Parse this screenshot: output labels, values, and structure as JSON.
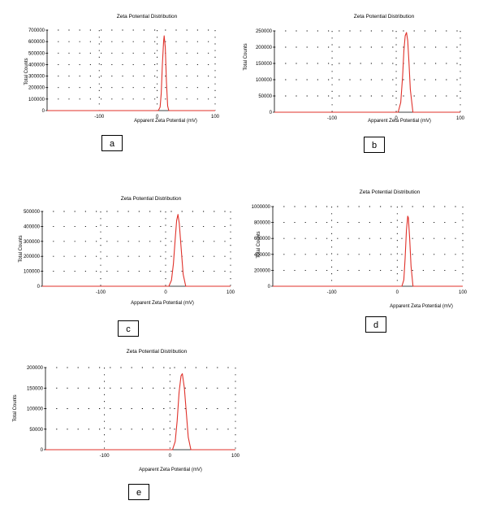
{
  "chart_data": [
    {
      "id": "a",
      "type": "line",
      "title": "Zeta Potential Distribution",
      "xlabel": "Apparent Zeta Potential (mV)",
      "ylabel": "Total Counts",
      "xlim": [
        -190,
        100
      ],
      "ylim": [
        0,
        700000
      ],
      "xticks": [
        -100,
        0,
        100
      ],
      "xtick_labels": [
        "-100",
        "0",
        "100"
      ],
      "yticks": [
        0,
        100000,
        200000,
        300000,
        400000,
        500000,
        600000,
        700000
      ],
      "ytick_labels": [
        "0",
        "100000",
        "200000",
        "300000",
        "400000",
        "500000",
        "600000",
        "700000"
      ],
      "grid": true,
      "series": [
        {
          "color": "#e0312a",
          "x": [
            -190,
            2,
            5,
            7,
            9,
            11,
            12,
            14,
            16,
            18,
            20,
            100
          ],
          "y": [
            0,
            0,
            30000,
            150000,
            400000,
            600000,
            650000,
            550000,
            250000,
            40000,
            0,
            0
          ]
        }
      ],
      "panel_label": "a"
    },
    {
      "id": "b",
      "type": "line",
      "title": "Zeta Potential Distribution",
      "xlabel": "Apparent Zeta Potential (mV)",
      "ylabel": "Total Counts",
      "xlim": [
        -190,
        100
      ],
      "ylim": [
        0,
        250000
      ],
      "xticks": [
        -100,
        0,
        100
      ],
      "xtick_labels": [
        "-100",
        "0",
        "100"
      ],
      "yticks": [
        0,
        50000,
        100000,
        150000,
        200000,
        250000
      ],
      "ytick_labels": [
        "0",
        "50000",
        "100000",
        "150000",
        "200000",
        "250000"
      ],
      "grid": true,
      "series": [
        {
          "color": "#e0312a",
          "x": [
            -190,
            3,
            7,
            10,
            12,
            14,
            16,
            18,
            20,
            22,
            26,
            100
          ],
          "y": [
            0,
            0,
            30000,
            110000,
            190000,
            235000,
            245000,
            220000,
            150000,
            70000,
            0,
            0
          ]
        }
      ],
      "panel_label": "b"
    },
    {
      "id": "c",
      "type": "line",
      "title": "Zeta Potential Distribution",
      "xlabel": "Apparent Zeta Potential (mV)",
      "ylabel": "Total Counts",
      "xlim": [
        -190,
        100
      ],
      "ylim": [
        0,
        500000
      ],
      "xticks": [
        -100,
        0,
        100
      ],
      "xtick_labels": [
        "-100",
        "0",
        "100"
      ],
      "yticks": [
        0,
        100000,
        200000,
        300000,
        400000,
        500000
      ],
      "ytick_labels": [
        "0",
        "100000",
        "200000",
        "300000",
        "400000",
        "500000"
      ],
      "grid": true,
      "series": [
        {
          "color": "#e0312a",
          "x": [
            -190,
            5,
            9,
            12,
            15,
            17,
            19,
            21,
            24,
            27,
            31,
            100
          ],
          "y": [
            0,
            0,
            40000,
            150000,
            330000,
            440000,
            480000,
            420000,
            250000,
            80000,
            0,
            0
          ]
        }
      ],
      "panel_label": "c"
    },
    {
      "id": "d",
      "type": "line",
      "title": "Zeta Potential Distribution",
      "xlabel": "Apparent Zeta Potential (mV)",
      "ylabel": "Total Counts",
      "xlim": [
        -190,
        100
      ],
      "ylim": [
        0,
        1000000
      ],
      "xticks": [
        -100,
        0,
        100
      ],
      "xtick_labels": [
        "-100",
        "0",
        "100"
      ],
      "yticks": [
        0,
        200000,
        400000,
        600000,
        800000,
        1000000
      ],
      "ytick_labels": [
        "0",
        "200000",
        "400000",
        "600000",
        "800000",
        "1000000"
      ],
      "grid": true,
      "series": [
        {
          "color": "#e0312a",
          "x": [
            -190,
            7,
            10,
            12,
            14,
            16,
            17,
            19,
            21,
            24,
            100
          ],
          "y": [
            0,
            0,
            80000,
            350000,
            700000,
            880000,
            860000,
            600000,
            250000,
            0,
            0
          ]
        }
      ],
      "panel_label": "d"
    },
    {
      "id": "e",
      "type": "line",
      "title": "Zeta Potential Distribution",
      "xlabel": "Apparent Zeta Potential (mV)",
      "ylabel": "Total Counts",
      "xlim": [
        -190,
        100
      ],
      "ylim": [
        0,
        200000
      ],
      "xticks": [
        -100,
        0,
        100
      ],
      "xtick_labels": [
        "-100",
        "0",
        "100"
      ],
      "yticks": [
        0,
        50000,
        100000,
        150000,
        200000
      ],
      "ytick_labels": [
        "0",
        "50000",
        "100000",
        "150000",
        "200000"
      ],
      "grid": true,
      "series": [
        {
          "color": "#e0312a",
          "x": [
            -190,
            4,
            8,
            11,
            14,
            17,
            19,
            22,
            25,
            28,
            32,
            100
          ],
          "y": [
            0,
            0,
            20000,
            70000,
            140000,
            180000,
            185000,
            150000,
            90000,
            30000,
            0,
            0
          ]
        }
      ],
      "panel_label": "e"
    }
  ]
}
